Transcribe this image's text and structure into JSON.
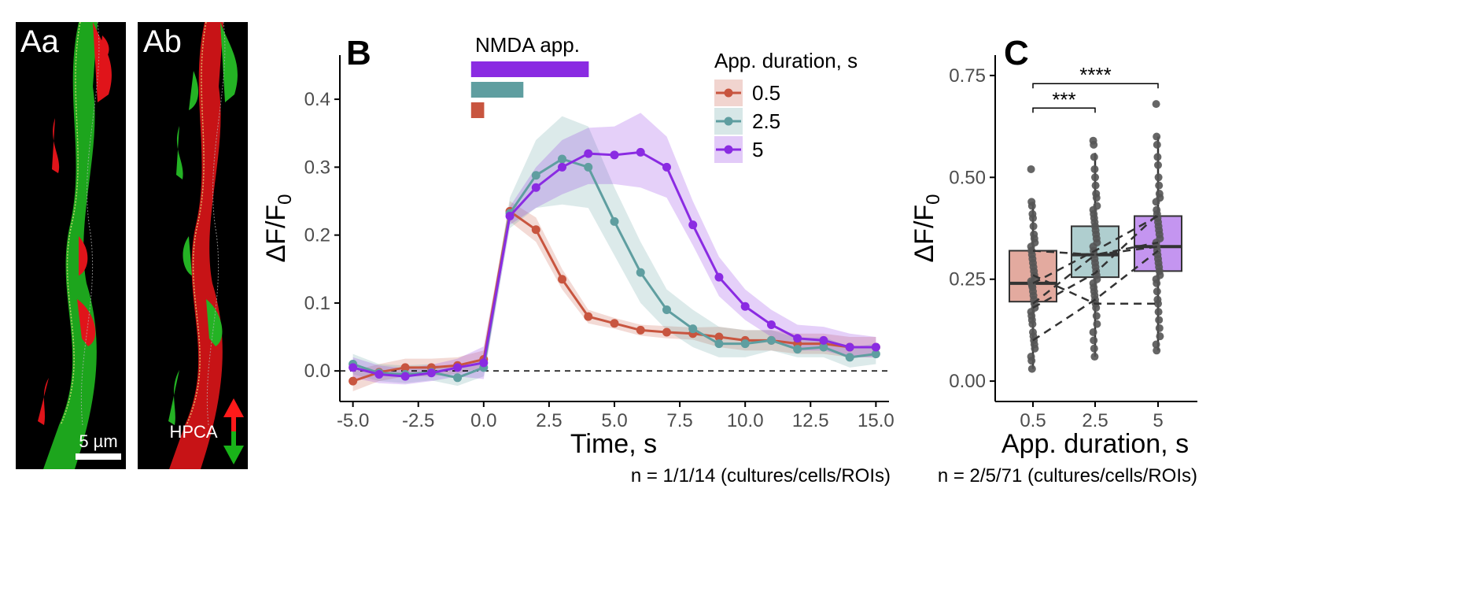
{
  "panels": {
    "aa": {
      "label": "Aa",
      "scale_bar": "5 µm"
    },
    "ab": {
      "label": "Ab",
      "annotation": "HPCA"
    },
    "b_label": "B",
    "c_label": "C"
  },
  "colors": {
    "c05": "#C8553F",
    "c25": "#5F9EA0",
    "c5": "#8A2BE2",
    "dark": "#333333"
  },
  "chart_data": [
    {
      "type": "line",
      "panel": "B",
      "title": "",
      "xlabel": "Time, s",
      "ylabel": "ΔF/F0",
      "xlim": [
        -5.5,
        15.5
      ],
      "ylim": [
        -0.045,
        0.465
      ],
      "xticks": [
        -5,
        -2.5,
        0,
        2.5,
        5,
        7.5,
        10,
        12.5,
        15
      ],
      "xtick_labels": [
        "-5.0",
        "-2.5",
        "0.0",
        "2.5",
        "5.0",
        "7.5",
        "10.0",
        "12.5",
        "15.0"
      ],
      "yticks": [
        0,
        0.1,
        0.2,
        0.3,
        0.4
      ],
      "ytick_labels": [
        "0.0",
        "0.1",
        "0.2",
        "0.3",
        "0.4"
      ],
      "reference_line": 0,
      "legend": {
        "title": "App. duration, s",
        "position": "top-right"
      },
      "application_label": "NMDA app.",
      "application_bars": [
        {
          "series": "5",
          "start": 0,
          "end": 4.5
        },
        {
          "series": "2.5",
          "start": 0,
          "end": 2
        },
        {
          "series": "0.5",
          "start": 0,
          "end": 0.5
        }
      ],
      "x": [
        -5,
        -4,
        -3,
        -2,
        -1,
        0,
        1,
        2,
        3,
        4,
        5,
        6,
        7,
        8,
        9,
        10,
        11,
        12,
        13,
        14,
        15
      ],
      "series": [
        {
          "name": "0.5",
          "color": "#C8553F",
          "values": [
            -0.015,
            -0.002,
            0.005,
            0.005,
            0.008,
            0.017,
            0.235,
            0.208,
            0.135,
            0.08,
            0.07,
            0.06,
            0.057,
            0.055,
            0.05,
            0.045,
            0.045,
            0.04,
            0.04,
            0.035,
            0.035
          ],
          "ci_low": [
            -0.03,
            -0.015,
            -0.008,
            -0.008,
            -0.004,
            0.005,
            0.22,
            0.19,
            0.12,
            0.07,
            0.062,
            0.052,
            0.048,
            0.046,
            0.035,
            0.03,
            0.03,
            0.025,
            0.025,
            0.02,
            0.02
          ],
          "ci_high": [
            0.0,
            0.01,
            0.018,
            0.018,
            0.02,
            0.03,
            0.25,
            0.226,
            0.15,
            0.09,
            0.078,
            0.068,
            0.066,
            0.064,
            0.065,
            0.06,
            0.06,
            0.055,
            0.055,
            0.05,
            0.05
          ]
        },
        {
          "name": "2.5",
          "color": "#5F9EA0",
          "values": [
            0.01,
            -0.003,
            -0.005,
            -0.002,
            -0.01,
            0.005,
            0.232,
            0.288,
            0.312,
            0.3,
            0.22,
            0.145,
            0.09,
            0.062,
            0.04,
            0.04,
            0.045,
            0.032,
            0.035,
            0.02,
            0.025
          ],
          "ci_low": [
            -0.005,
            -0.015,
            -0.018,
            -0.014,
            -0.022,
            -0.008,
            0.21,
            0.24,
            0.245,
            0.24,
            0.17,
            0.1,
            0.06,
            0.035,
            0.02,
            0.02,
            0.03,
            0.02,
            0.02,
            0.005,
            0.01
          ],
          "ci_high": [
            0.025,
            0.01,
            0.008,
            0.01,
            0.002,
            0.018,
            0.255,
            0.34,
            0.375,
            0.36,
            0.27,
            0.19,
            0.12,
            0.09,
            0.065,
            0.06,
            0.06,
            0.048,
            0.05,
            0.035,
            0.04
          ]
        },
        {
          "name": "5",
          "color": "#8A2BE2",
          "values": [
            0.005,
            -0.005,
            -0.008,
            -0.003,
            0.005,
            0.012,
            0.228,
            0.27,
            0.3,
            0.32,
            0.318,
            0.322,
            0.3,
            0.215,
            0.138,
            0.095,
            0.068,
            0.048,
            0.045,
            0.035,
            0.035
          ],
          "ci_low": [
            -0.01,
            -0.018,
            -0.02,
            -0.015,
            -0.008,
            -0.012,
            0.215,
            0.24,
            0.26,
            0.275,
            0.275,
            0.27,
            0.255,
            0.185,
            0.11,
            0.075,
            0.05,
            0.03,
            0.03,
            0.02,
            0.02
          ],
          "ci_high": [
            0.02,
            0.008,
            0.004,
            0.009,
            0.018,
            0.036,
            0.242,
            0.3,
            0.34,
            0.358,
            0.36,
            0.38,
            0.345,
            0.25,
            0.168,
            0.12,
            0.09,
            0.068,
            0.065,
            0.055,
            0.05
          ]
        }
      ],
      "footnote": "n = 1/1/14 (cultures/cells/ROIs)"
    },
    {
      "type": "box",
      "panel": "C",
      "title": "",
      "xlabel": "App. duration, s",
      "ylabel": "ΔF/F0",
      "categories": [
        "0.5",
        "2.5",
        "5"
      ],
      "ylim": [
        -0.05,
        0.8
      ],
      "yticks": [
        0,
        0.25,
        0.5,
        0.75
      ],
      "ytick_labels": [
        "0.00",
        "0.25",
        "0.50",
        "0.75"
      ],
      "boxes": [
        {
          "category": "0.5",
          "color": "#C8553F",
          "q1": 0.195,
          "median": 0.24,
          "q3": 0.32,
          "whisker_low": 0.03,
          "whisker_high": 0.44
        },
        {
          "category": "2.5",
          "color": "#5F9EA0",
          "q1": 0.255,
          "median": 0.31,
          "q3": 0.38,
          "whisker_low": 0.06,
          "whisker_high": 0.56
        },
        {
          "category": "5",
          "color": "#8A2BE2",
          "q1": 0.27,
          "median": 0.33,
          "q3": 0.405,
          "whisker_low": 0.075,
          "whisker_high": 0.6
        }
      ],
      "points": [
        {
          "category": "0.5",
          "values": [
            0.52,
            0.44,
            0.43,
            0.41,
            0.4,
            0.38,
            0.36,
            0.35,
            0.34,
            0.33,
            0.32,
            0.31,
            0.3,
            0.29,
            0.28,
            0.27,
            0.26,
            0.25,
            0.245,
            0.24,
            0.235,
            0.23,
            0.22,
            0.21,
            0.2,
            0.19,
            0.18,
            0.17,
            0.16,
            0.15,
            0.14,
            0.12,
            0.11,
            0.1,
            0.09,
            0.08,
            0.06,
            0.05,
            0.03
          ]
        },
        {
          "category": "2.5",
          "values": [
            0.59,
            0.58,
            0.55,
            0.52,
            0.5,
            0.48,
            0.46,
            0.45,
            0.43,
            0.42,
            0.41,
            0.4,
            0.39,
            0.38,
            0.37,
            0.36,
            0.35,
            0.34,
            0.33,
            0.32,
            0.31,
            0.3,
            0.29,
            0.28,
            0.27,
            0.26,
            0.25,
            0.24,
            0.23,
            0.22,
            0.21,
            0.2,
            0.19,
            0.18,
            0.16,
            0.14,
            0.12,
            0.1,
            0.08,
            0.06
          ]
        },
        {
          "category": "5",
          "values": [
            0.68,
            0.6,
            0.58,
            0.55,
            0.53,
            0.5,
            0.48,
            0.46,
            0.45,
            0.44,
            0.42,
            0.41,
            0.4,
            0.39,
            0.38,
            0.37,
            0.36,
            0.35,
            0.34,
            0.33,
            0.32,
            0.31,
            0.3,
            0.29,
            0.28,
            0.27,
            0.26,
            0.25,
            0.24,
            0.22,
            0.2,
            0.19,
            0.17,
            0.15,
            0.13,
            0.11,
            0.09,
            0.075
          ]
        }
      ],
      "paired_lines": [
        [
          0.1,
          0.2,
          0.32
        ],
        [
          0.18,
          0.265,
          0.41
        ],
        [
          0.19,
          0.31,
          0.33
        ],
        [
          0.24,
          0.32,
          0.405
        ],
        [
          0.32,
          0.31,
          0.34
        ],
        [
          0.26,
          0.19,
          0.19
        ]
      ],
      "significance": [
        {
          "from": "0.5",
          "to": "2.5",
          "label": "***",
          "y": 0.67
        },
        {
          "from": "0.5",
          "to": "5",
          "label": "****",
          "y": 0.73
        }
      ],
      "footnote": "n = 2/5/71 (cultures/cells/ROIs)"
    }
  ]
}
